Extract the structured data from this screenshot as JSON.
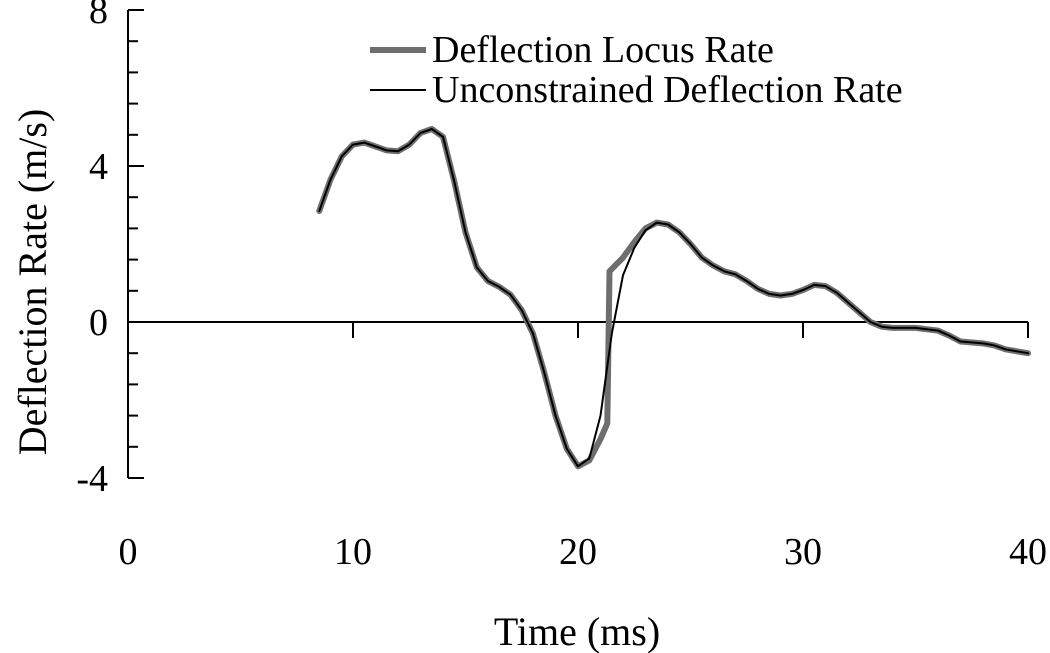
{
  "chart_data": {
    "type": "line",
    "xlabel": "Time (ms)",
    "ylabel": "Deflection Rate (m/s)",
    "xlim": [
      0,
      40
    ],
    "ylim": [
      -4,
      8
    ],
    "x_ticks": [
      0,
      10,
      20,
      30,
      40
    ],
    "y_ticks": [
      -4,
      0,
      4,
      8
    ],
    "y_minor_step": 0.8,
    "grid": false,
    "legend_position": "top-right",
    "series": [
      {
        "name": "Deflection Locus Rate",
        "color": "#6e6e6e",
        "style": "thick",
        "points": [
          [
            8.5,
            2.85
          ],
          [
            9.0,
            3.65
          ],
          [
            9.5,
            4.25
          ],
          [
            10.0,
            4.55
          ],
          [
            10.5,
            4.6
          ],
          [
            11.0,
            4.5
          ],
          [
            11.5,
            4.4
          ],
          [
            12.0,
            4.38
          ],
          [
            12.5,
            4.55
          ],
          [
            13.0,
            4.85
          ],
          [
            13.5,
            4.95
          ],
          [
            14.0,
            4.75
          ],
          [
            14.5,
            3.6
          ],
          [
            15.0,
            2.3
          ],
          [
            15.5,
            1.4
          ],
          [
            16.0,
            1.05
          ],
          [
            16.5,
            0.9
          ],
          [
            17.0,
            0.7
          ],
          [
            17.5,
            0.3
          ],
          [
            18.0,
            -0.3
          ],
          [
            18.5,
            -1.3
          ],
          [
            19.0,
            -2.4
          ],
          [
            19.5,
            -3.25
          ],
          [
            20.0,
            -3.7
          ],
          [
            20.5,
            -3.55
          ],
          [
            21.0,
            -3.0
          ],
          [
            21.3,
            -2.6
          ],
          [
            21.4,
            1.3
          ],
          [
            22.0,
            1.65
          ],
          [
            22.5,
            2.05
          ],
          [
            23.0,
            2.4
          ],
          [
            23.5,
            2.55
          ],
          [
            24.0,
            2.5
          ],
          [
            24.5,
            2.3
          ],
          [
            25.0,
            2.0
          ],
          [
            25.5,
            1.65
          ],
          [
            26.0,
            1.45
          ],
          [
            26.5,
            1.3
          ],
          [
            27.0,
            1.22
          ],
          [
            27.5,
            1.05
          ],
          [
            28.0,
            0.85
          ],
          [
            28.5,
            0.72
          ],
          [
            29.0,
            0.68
          ],
          [
            29.5,
            0.72
          ],
          [
            30.0,
            0.82
          ],
          [
            30.5,
            0.95
          ],
          [
            31.0,
            0.92
          ],
          [
            31.5,
            0.75
          ],
          [
            32.0,
            0.5
          ],
          [
            32.5,
            0.25
          ],
          [
            33.0,
            0.0
          ],
          [
            33.5,
            -0.12
          ],
          [
            34.0,
            -0.15
          ],
          [
            35.0,
            -0.15
          ],
          [
            36.0,
            -0.22
          ],
          [
            36.5,
            -0.35
          ],
          [
            37.0,
            -0.5
          ],
          [
            38.0,
            -0.55
          ],
          [
            38.5,
            -0.6
          ],
          [
            39.0,
            -0.7
          ],
          [
            39.5,
            -0.75
          ],
          [
            40.0,
            -0.8
          ]
        ]
      },
      {
        "name": "Unconstrained Deflection Rate",
        "color": "#000000",
        "style": "thin",
        "points": [
          [
            8.5,
            2.85
          ],
          [
            9.0,
            3.65
          ],
          [
            9.5,
            4.25
          ],
          [
            10.0,
            4.55
          ],
          [
            10.5,
            4.6
          ],
          [
            11.0,
            4.5
          ],
          [
            11.5,
            4.4
          ],
          [
            12.0,
            4.38
          ],
          [
            12.5,
            4.55
          ],
          [
            13.0,
            4.85
          ],
          [
            13.5,
            4.95
          ],
          [
            14.0,
            4.75
          ],
          [
            14.5,
            3.6
          ],
          [
            15.0,
            2.3
          ],
          [
            15.5,
            1.4
          ],
          [
            16.0,
            1.05
          ],
          [
            16.5,
            0.9
          ],
          [
            17.0,
            0.7
          ],
          [
            17.5,
            0.3
          ],
          [
            18.0,
            -0.3
          ],
          [
            18.5,
            -1.3
          ],
          [
            19.0,
            -2.4
          ],
          [
            19.5,
            -3.25
          ],
          [
            20.0,
            -3.7
          ],
          [
            20.5,
            -3.5
          ],
          [
            21.0,
            -2.4
          ],
          [
            21.5,
            -0.3
          ],
          [
            22.0,
            1.2
          ],
          [
            22.5,
            1.9
          ],
          [
            23.0,
            2.35
          ],
          [
            23.5,
            2.55
          ],
          [
            24.0,
            2.5
          ],
          [
            24.5,
            2.3
          ],
          [
            25.0,
            2.0
          ],
          [
            25.5,
            1.65
          ],
          [
            26.0,
            1.45
          ],
          [
            26.5,
            1.3
          ],
          [
            27.0,
            1.22
          ],
          [
            27.5,
            1.05
          ],
          [
            28.0,
            0.85
          ],
          [
            28.5,
            0.72
          ],
          [
            29.0,
            0.68
          ],
          [
            29.5,
            0.72
          ],
          [
            30.0,
            0.82
          ],
          [
            30.5,
            0.95
          ],
          [
            31.0,
            0.92
          ],
          [
            31.5,
            0.75
          ],
          [
            32.0,
            0.5
          ],
          [
            32.5,
            0.25
          ],
          [
            33.0,
            0.0
          ],
          [
            33.5,
            -0.12
          ],
          [
            34.0,
            -0.15
          ],
          [
            35.0,
            -0.15
          ],
          [
            36.0,
            -0.22
          ],
          [
            36.5,
            -0.35
          ],
          [
            37.0,
            -0.5
          ],
          [
            38.0,
            -0.55
          ],
          [
            38.5,
            -0.6
          ],
          [
            39.0,
            -0.7
          ],
          [
            39.5,
            -0.75
          ],
          [
            40.0,
            -0.8
          ]
        ]
      }
    ]
  }
}
